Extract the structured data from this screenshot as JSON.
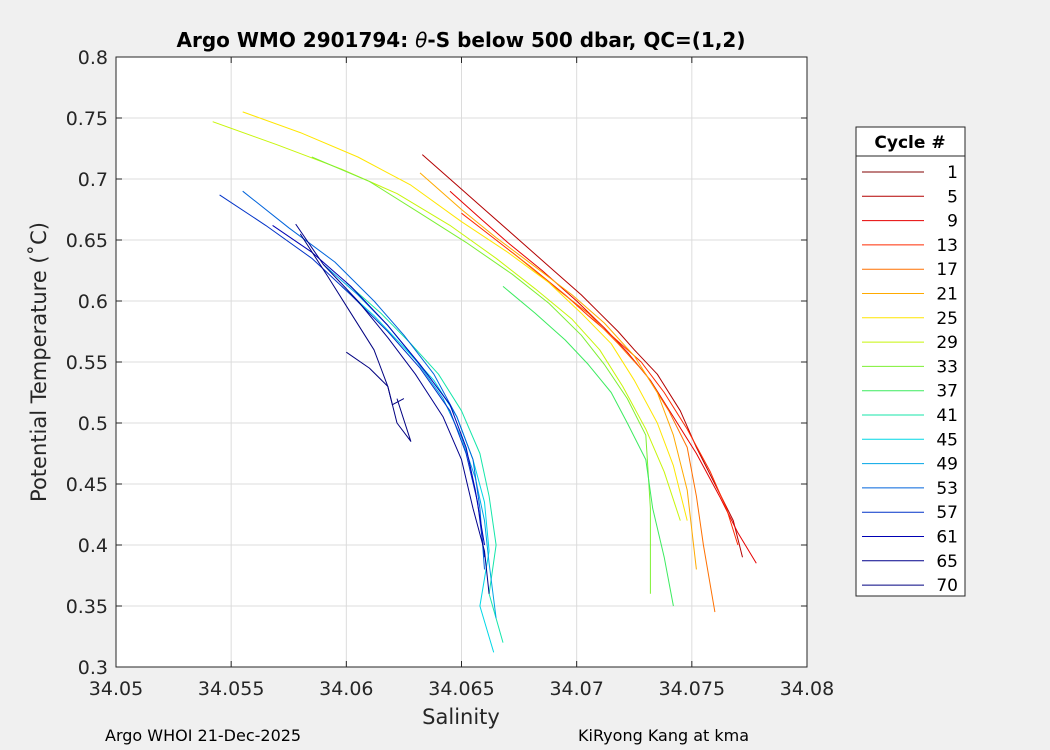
{
  "chart_data": {
    "type": "line",
    "title_prefix": "Argo WMO 2901794: ",
    "title_symbol": "θ",
    "title_suffix": "-S below 500 dbar,  QC=(1,2)",
    "xlabel": "Salinity",
    "ylabel": "Potential Temperature (˚C)",
    "xlim": [
      34.05,
      34.08
    ],
    "ylim": [
      0.3,
      0.8
    ],
    "xticks": [
      "34.05",
      "34.055",
      "34.06",
      "34.065",
      "34.07",
      "34.075",
      "34.08"
    ],
    "yticks": [
      "0.3",
      "0.35",
      "0.4",
      "0.45",
      "0.5",
      "0.55",
      "0.6",
      "0.65",
      "0.7",
      "0.75",
      "0.8"
    ],
    "grid": true,
    "legend_position": "outside-right",
    "legend_title": "Cycle #",
    "legend": [
      {
        "label": "1",
        "color": "#800000"
      },
      {
        "label": "5",
        "color": "#b30000"
      },
      {
        "label": "9",
        "color": "#e60000"
      },
      {
        "label": "13",
        "color": "#ff2a00"
      },
      {
        "label": "17",
        "color": "#ff7000"
      },
      {
        "label": "21",
        "color": "#ffaa00"
      },
      {
        "label": "25",
        "color": "#ffe600"
      },
      {
        "label": "29",
        "color": "#c8f50a"
      },
      {
        "label": "33",
        "color": "#7df032"
      },
      {
        "label": "37",
        "color": "#3ceb5f"
      },
      {
        "label": "41",
        "color": "#14e6aa"
      },
      {
        "label": "45",
        "color": "#00d7e6"
      },
      {
        "label": "49",
        "color": "#00a5e6"
      },
      {
        "label": "53",
        "color": "#0064dc"
      },
      {
        "label": "57",
        "color": "#0032c8"
      },
      {
        "label": "61",
        "color": "#0000b4"
      },
      {
        "label": "65",
        "color": "#00008c"
      },
      {
        "label": "70",
        "color": "#000080"
      }
    ],
    "series": [
      {
        "color": "#b30000",
        "x": [
          34.0633,
          34.0648,
          34.066,
          34.0675,
          34.069,
          34.0702,
          34.071,
          34.0718,
          34.0725,
          34.0735,
          34.0745,
          34.0752,
          34.076,
          34.0768,
          34.0772
        ],
        "y": [
          0.72,
          0.695,
          0.675,
          0.65,
          0.625,
          0.605,
          0.59,
          0.575,
          0.56,
          0.54,
          0.51,
          0.48,
          0.45,
          0.42,
          0.39
        ]
      },
      {
        "color": "#e60000",
        "x": [
          34.0645,
          34.0658,
          34.067,
          34.0685,
          34.07,
          34.0712,
          34.0722,
          34.0732,
          34.0742,
          34.0752,
          34.0762,
          34.077,
          34.0778
        ],
        "y": [
          0.69,
          0.668,
          0.648,
          0.625,
          0.6,
          0.578,
          0.558,
          0.535,
          0.505,
          0.475,
          0.44,
          0.41,
          0.385
        ]
      },
      {
        "color": "#ff2a00",
        "x": [
          34.065,
          34.0665,
          34.068,
          34.0695,
          34.0705,
          34.0715,
          34.0728,
          34.0738,
          34.0748,
          34.0758,
          34.0765,
          34.077
        ],
        "y": [
          0.672,
          0.65,
          0.628,
          0.605,
          0.588,
          0.572,
          0.55,
          0.525,
          0.495,
          0.46,
          0.43,
          0.4
        ]
      },
      {
        "color": "#ff7000",
        "x": [
          34.0672,
          34.069,
          34.0705,
          34.0718,
          34.073,
          34.074,
          34.0748,
          34.0752,
          34.0755,
          34.076
        ],
        "y": [
          0.64,
          0.612,
          0.59,
          0.565,
          0.54,
          0.51,
          0.48,
          0.44,
          0.4,
          0.345
        ]
      },
      {
        "color": "#ffaa00",
        "x": [
          34.0632,
          34.065,
          34.0665,
          34.0682,
          34.0698,
          34.0712,
          34.0725,
          34.0735,
          34.0742,
          34.0748,
          34.0752
        ],
        "y": [
          0.705,
          0.675,
          0.652,
          0.628,
          0.605,
          0.582,
          0.555,
          0.525,
          0.49,
          0.445,
          0.38
        ]
      },
      {
        "color": "#ffe600",
        "x": [
          34.0555,
          34.058,
          34.0605,
          34.0628,
          34.065,
          34.067,
          34.0688,
          34.0702,
          34.0715,
          34.0725,
          34.0735,
          34.0742,
          34.0748
        ],
        "y": [
          0.755,
          0.738,
          0.718,
          0.695,
          0.665,
          0.64,
          0.615,
          0.59,
          0.565,
          0.535,
          0.5,
          0.465,
          0.42
        ]
      },
      {
        "color": "#c8f50a",
        "x": [
          34.0542,
          34.057,
          34.0598,
          34.0622,
          34.0645,
          34.0665,
          34.0682,
          34.0698,
          34.071,
          34.072,
          34.073,
          34.0738,
          34.0745
        ],
        "y": [
          0.747,
          0.728,
          0.708,
          0.688,
          0.662,
          0.635,
          0.61,
          0.585,
          0.56,
          0.53,
          0.495,
          0.46,
          0.42
        ]
      },
      {
        "color": "#7df032",
        "x": [
          34.0585,
          34.061,
          34.0632,
          34.0652,
          34.0672,
          34.0688,
          34.0702,
          34.0712,
          34.0722,
          34.073,
          34.0732,
          34.0732
        ],
        "y": [
          0.718,
          0.698,
          0.672,
          0.648,
          0.622,
          0.598,
          0.572,
          0.548,
          0.52,
          0.49,
          0.43,
          0.36
        ]
      },
      {
        "color": "#3ceb5f",
        "x": [
          34.0668,
          34.0682,
          34.0695,
          34.0705,
          34.0715,
          34.0722,
          34.073,
          34.0733,
          34.0738,
          34.0742
        ],
        "y": [
          0.612,
          0.59,
          0.568,
          0.548,
          0.525,
          0.5,
          0.47,
          0.43,
          0.39,
          0.35
        ]
      },
      {
        "color": "#14e6aa",
        "x": [
          34.06,
          34.0615,
          34.0628,
          34.064,
          34.065,
          34.0658,
          34.0662,
          34.0665,
          34.0662,
          34.0668
        ],
        "y": [
          0.615,
          0.59,
          0.565,
          0.54,
          0.51,
          0.475,
          0.44,
          0.4,
          0.36,
          0.32
        ]
      },
      {
        "color": "#00d7e6",
        "x": [
          34.0598,
          34.0612,
          34.0625,
          34.0638,
          34.0648,
          34.0655,
          34.066,
          34.0662,
          34.0658,
          34.0664
        ],
        "y": [
          0.612,
          0.588,
          0.562,
          0.535,
          0.505,
          0.47,
          0.435,
          0.395,
          0.35,
          0.312
        ]
      },
      {
        "color": "#00a5e6",
        "x": [
          34.059,
          34.0605,
          34.0618,
          34.063,
          34.0642,
          34.065,
          34.0656,
          34.066,
          34.0662,
          34.0665
        ],
        "y": [
          0.63,
          0.605,
          0.58,
          0.552,
          0.52,
          0.488,
          0.455,
          0.42,
          0.385,
          0.34
        ]
      },
      {
        "color": "#0064dc",
        "x": [
          34.0555,
          34.0575,
          34.0595,
          34.0612,
          34.0625,
          34.0638,
          34.0648,
          34.0655,
          34.0658,
          34.066
        ],
        "y": [
          0.69,
          0.66,
          0.632,
          0.6,
          0.572,
          0.54,
          0.505,
          0.47,
          0.43,
          0.38
        ]
      },
      {
        "color": "#0032c8",
        "x": [
          34.0545,
          34.0565,
          34.0585,
          34.0602,
          34.0618,
          34.0632,
          34.0645,
          34.0652,
          34.0657,
          34.066
        ],
        "y": [
          0.687,
          0.662,
          0.635,
          0.605,
          0.575,
          0.545,
          0.51,
          0.475,
          0.435,
          0.39
        ]
      },
      {
        "color": "#0000b4",
        "x": [
          34.0568,
          34.0585,
          34.0602,
          34.0618,
          34.0632,
          34.0645,
          34.0652,
          34.0656,
          34.066
        ],
        "y": [
          0.662,
          0.64,
          0.612,
          0.58,
          0.548,
          0.515,
          0.48,
          0.445,
          0.4
        ]
      },
      {
        "color": "#00008c",
        "x": [
          34.0578,
          34.059,
          34.0605,
          34.0618,
          34.063,
          34.0642,
          34.065,
          34.0655,
          34.066,
          34.0662
        ],
        "y": [
          0.663,
          0.63,
          0.6,
          0.57,
          0.54,
          0.505,
          0.47,
          0.43,
          0.395,
          0.36
        ]
      },
      {
        "color": "#000080",
        "x": [
          34.058,
          34.0592,
          34.0602,
          34.0612,
          34.0618,
          34.0622,
          34.0628,
          34.0622
        ],
        "y": [
          0.655,
          0.62,
          0.59,
          0.56,
          0.53,
          0.5,
          0.485,
          0.52
        ]
      },
      {
        "color": "#000080",
        "x": [
          34.06,
          34.061,
          34.0618,
          34.062,
          34.0625
        ],
        "y": [
          0.558,
          0.545,
          0.53,
          0.515,
          0.52
        ]
      }
    ]
  },
  "footer": {
    "left": "Argo WHOI 21-Dec-2025",
    "right": "KiRyong Kang at kma"
  }
}
